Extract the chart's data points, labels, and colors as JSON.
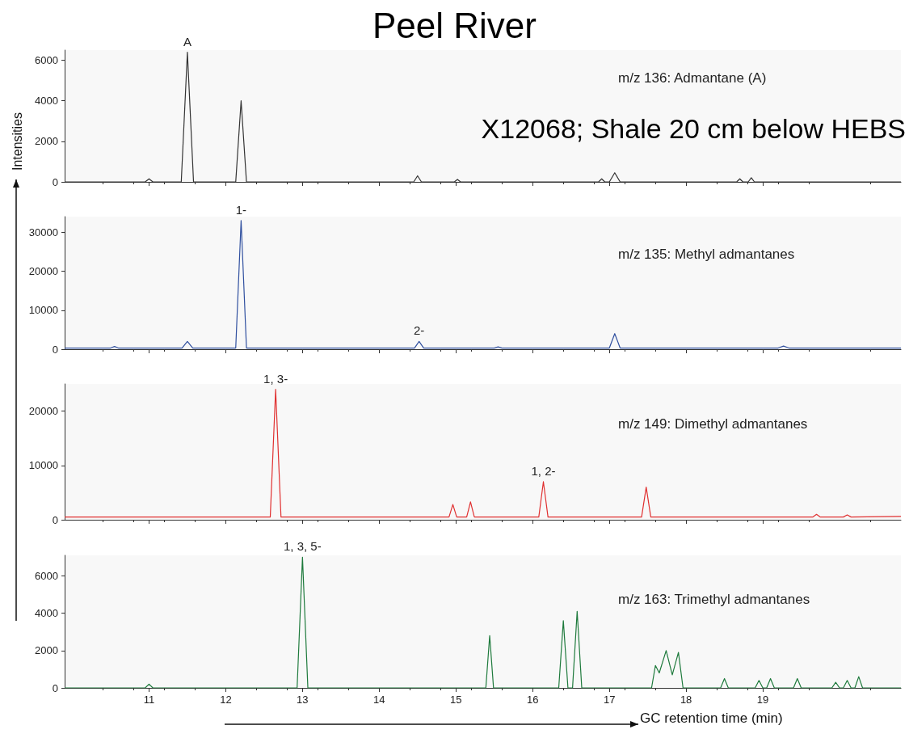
{
  "chart_data": [
    {
      "type": "line",
      "title": "Peel River",
      "subtitle": "X12068; Shale 20 cm below HEBS",
      "ylabel": "Intensities",
      "xlim": [
        9.9,
        20.8
      ],
      "xticks": [
        11,
        12,
        13,
        14,
        15,
        16,
        17,
        18,
        19
      ],
      "ylim": [
        0,
        6500
      ],
      "yticks": [
        0,
        2000,
        4000,
        6000
      ],
      "tick_labels": "y",
      "grid": false,
      "marker": "none",
      "line_style": "solid",
      "annotations": [
        "m/z 136: Admantane (A)",
        {
          "text": "A",
          "x": 11.5,
          "y": 6400
        }
      ],
      "series": [
        {
          "color": "#333333",
          "x": [
            9.9,
            10.95,
            11.0,
            11.05,
            11.42,
            11.5,
            11.58,
            12.13,
            12.2,
            12.27,
            14.45,
            14.5,
            14.55,
            14.98,
            15.02,
            15.06,
            16.86,
            16.9,
            16.94,
            17.0,
            17.07,
            17.14,
            18.66,
            18.7,
            18.74,
            18.81,
            18.85,
            18.89,
            20.8
          ],
          "values": [
            0,
            0,
            150,
            0,
            0,
            6400,
            0,
            0,
            4000,
            0,
            0,
            300,
            0,
            0,
            120,
            0,
            0,
            150,
            0,
            0,
            450,
            0,
            0,
            150,
            0,
            0,
            200,
            0,
            0
          ]
        }
      ]
    },
    {
      "type": "line",
      "xlim": [
        9.9,
        20.8
      ],
      "xticks": [
        11,
        12,
        13,
        14,
        15,
        16,
        17,
        18,
        19
      ],
      "ylim": [
        0,
        34000
      ],
      "yticks": [
        0,
        10000,
        20000,
        30000
      ],
      "tick_labels": "y",
      "grid": false,
      "marker": "none",
      "line_style": "solid",
      "annotations": [
        "m/z 135: Methyl admantanes",
        {
          "text": "1-",
          "x": 12.2,
          "y": 33000
        },
        {
          "text": "2-",
          "x": 14.52,
          "y": 2000
        }
      ],
      "series": [
        {
          "color": "#2f4f9f",
          "x": [
            9.9,
            10.5,
            10.55,
            10.6,
            11.43,
            11.5,
            11.57,
            12.13,
            12.2,
            12.27,
            14.46,
            14.52,
            14.58,
            15.5,
            15.55,
            15.6,
            17.0,
            17.07,
            17.14,
            19.2,
            19.27,
            19.34,
            20.8
          ],
          "values": [
            300,
            300,
            700,
            300,
            300,
            2000,
            300,
            300,
            33000,
            300,
            300,
            2000,
            300,
            300,
            600,
            300,
            300,
            4000,
            300,
            300,
            800,
            300,
            300
          ]
        }
      ]
    },
    {
      "type": "line",
      "xlim": [
        9.9,
        20.8
      ],
      "xticks": [
        11,
        12,
        13,
        14,
        15,
        16,
        17,
        18,
        19
      ],
      "ylim": [
        0,
        25000
      ],
      "yticks": [
        0,
        10000,
        20000
      ],
      "tick_labels": "y",
      "grid": false,
      "marker": "none",
      "line_style": "solid",
      "annotations": [
        "m/z 149: Dimethyl admantanes",
        {
          "text": "1, 3-",
          "x": 12.65,
          "y": 24000
        },
        {
          "text": "1, 2-",
          "x": 16.14,
          "y": 7000
        }
      ],
      "series": [
        {
          "color": "#e03030",
          "x": [
            9.9,
            12.58,
            12.65,
            12.72,
            14.91,
            14.96,
            15.01,
            15.14,
            15.19,
            15.24,
            16.08,
            16.14,
            16.2,
            17.42,
            17.48,
            17.54,
            19.65,
            19.7,
            19.75,
            20.05,
            20.1,
            20.15,
            20.8
          ],
          "values": [
            500,
            500,
            24000,
            500,
            500,
            2800,
            500,
            500,
            3300,
            500,
            500,
            7000,
            500,
            500,
            6000,
            500,
            500,
            1000,
            500,
            500,
            900,
            500,
            600
          ]
        }
      ]
    },
    {
      "type": "line",
      "xlabel": "GC retention time (min)",
      "xlim": [
        9.9,
        20.8
      ],
      "xticks": [
        11,
        12,
        13,
        14,
        15,
        16,
        17,
        18,
        19
      ],
      "ylim": [
        0,
        7100
      ],
      "yticks": [
        0,
        2000,
        4000,
        6000
      ],
      "grid": false,
      "marker": "none",
      "line_style": "solid",
      "annotations": [
        "m/z 163: Trimethyl admantanes",
        {
          "text": "1, 3, 5-",
          "x": 13.0,
          "y": 7000
        }
      ],
      "series": [
        {
          "color": "#1e7a3c",
          "x": [
            9.9,
            10.95,
            11.0,
            11.05,
            12.93,
            13.0,
            13.07,
            15.39,
            15.44,
            15.49,
            16.34,
            16.4,
            16.46,
            16.52,
            16.58,
            16.64,
            17.55,
            17.6,
            17.65,
            17.74,
            17.82,
            17.9,
            17.96,
            18.45,
            18.5,
            18.55,
            18.9,
            18.95,
            19.0,
            19.05,
            19.1,
            19.15,
            19.4,
            19.45,
            19.5,
            19.9,
            19.95,
            20.0,
            20.05,
            20.1,
            20.15,
            20.2,
            20.25,
            20.3,
            20.8
          ],
          "values": [
            0,
            0,
            200,
            0,
            0,
            7000,
            0,
            0,
            2800,
            0,
            0,
            3600,
            0,
            0,
            4100,
            0,
            0,
            1200,
            800,
            2000,
            700,
            1900,
            0,
            0,
            500,
            0,
            0,
            400,
            0,
            0,
            500,
            0,
            0,
            500,
            0,
            0,
            300,
            0,
            0,
            400,
            0,
            0,
            600,
            0,
            0
          ]
        }
      ]
    }
  ]
}
